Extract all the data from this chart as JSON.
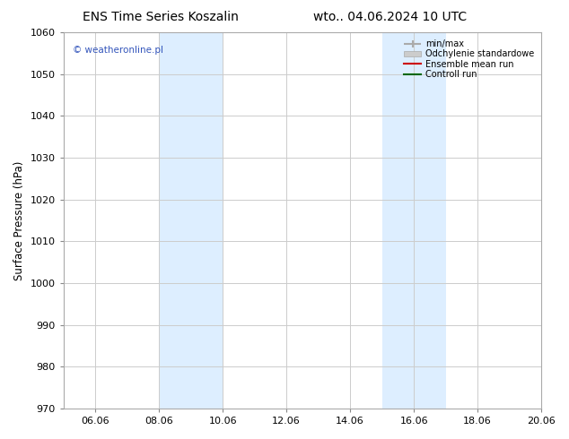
{
  "title_left": "ENS Time Series Koszalin",
  "title_right": "wto.. 04.06.2024 10 UTC",
  "ylabel": "Surface Pressure (hPa)",
  "ylim": [
    970,
    1060
  ],
  "yticks": [
    970,
    980,
    990,
    1000,
    1010,
    1020,
    1030,
    1040,
    1050,
    1060
  ],
  "xlim": [
    0,
    15
  ],
  "xtick_labels": [
    "06.06",
    "08.06",
    "10.06",
    "12.06",
    "14.06",
    "16.06",
    "18.06",
    "20.06"
  ],
  "xtick_positions": [
    1,
    3,
    5,
    7,
    9,
    11,
    13,
    15
  ],
  "shade_bands": [
    {
      "x_start": 3,
      "x_end": 5,
      "color": "#ddeeff"
    },
    {
      "x_start": 10,
      "x_end": 12,
      "color": "#ddeeff"
    }
  ],
  "watermark": "© weatheronline.pl",
  "watermark_color": "#3355bb",
  "legend_entries": [
    {
      "label": "min/max",
      "color": "#aaaaaa",
      "lw": 1.5
    },
    {
      "label": "Odchylenie standardowe",
      "color": "#cccccc",
      "lw": 8
    },
    {
      "label": "Ensemble mean run",
      "color": "#cc0000",
      "lw": 1.5
    },
    {
      "label": "Controll run",
      "color": "#006600",
      "lw": 1.5
    }
  ],
  "bg_color": "#ffffff",
  "grid_color": "#cccccc",
  "title_fontsize": 10,
  "tick_fontsize": 8,
  "ylabel_fontsize": 8.5,
  "font_family": "DejaVu Sans"
}
